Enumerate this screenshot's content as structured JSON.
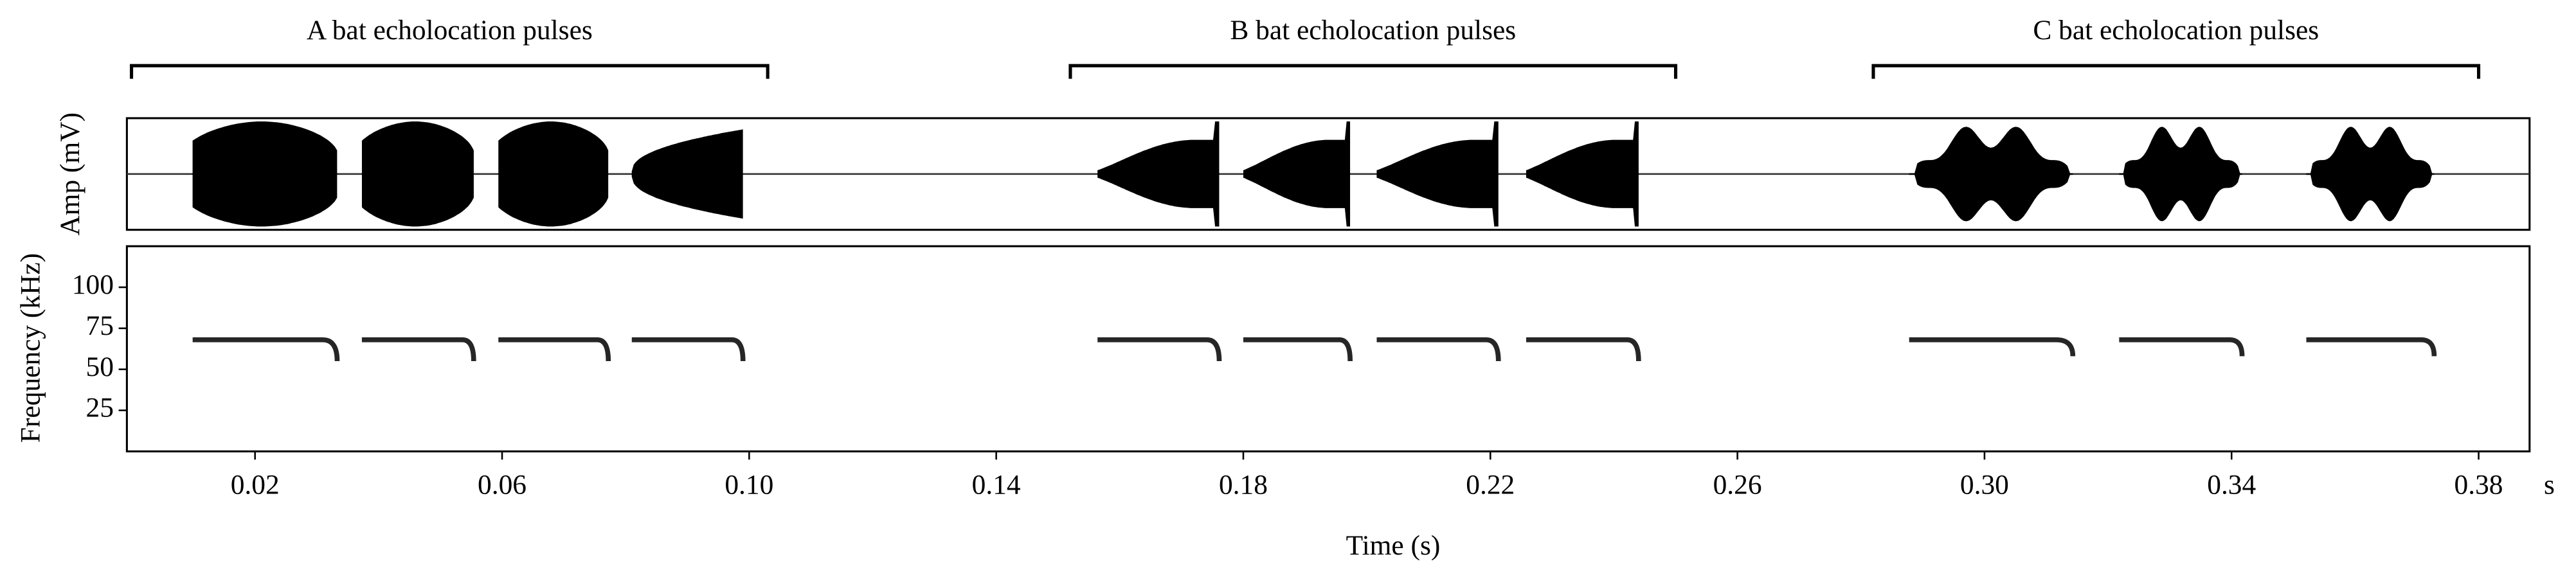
{
  "chart_data": {
    "type": "oscillogram-spectrogram",
    "amp_label": "Amp (mV)",
    "freq_label": "Frequency (kHz)",
    "x_label": "Time (s)",
    "x_unit": "s",
    "color": "#000000",
    "xlim": [
      0,
      0.39
    ],
    "xticks": [
      0.02,
      0.06,
      {
        "value": 0.1,
        "label": "0.10"
      },
      0.14,
      0.18,
      0.22,
      0.26,
      {
        "value": 0.3,
        "label": "0.30"
      },
      0.34,
      0.38
    ],
    "ylim": [
      0,
      125
    ],
    "yticks": [
      25,
      50,
      75,
      100
    ],
    "groups": [
      {
        "label": "A bat echolocation pulses",
        "span": [
          0,
          0.103
        ],
        "pulses": [
          {
            "start": 0.0099,
            "end": 0.0333,
            "freq": 68,
            "end_freq": 55
          },
          {
            "start": 0.0373,
            "end": 0.0554,
            "freq": 68,
            "end_freq": 55
          },
          {
            "start": 0.0594,
            "end": 0.0772,
            "freq": 68,
            "end_freq": 55
          },
          {
            "start": 0.081,
            "end": 0.099,
            "freq": 68,
            "end_freq": 55
          }
        ]
      },
      {
        "label": "B bat echolocation pulses",
        "span": [
          0.152,
          0.25
        ],
        "pulses": [
          {
            "start": 0.1564,
            "end": 0.1761,
            "freq": 68,
            "end_freq": 55
          },
          {
            "start": 0.18,
            "end": 0.1973,
            "freq": 68,
            "end_freq": 55
          },
          {
            "start": 0.2016,
            "end": 0.2213,
            "freq": 68,
            "end_freq": 55
          },
          {
            "start": 0.2258,
            "end": 0.244,
            "freq": 68,
            "end_freq": 55
          }
        ]
      },
      {
        "label": "C bat echolocation pulses",
        "span": [
          0.282,
          0.38
        ],
        "pulses": [
          {
            "start": 0.2878,
            "end": 0.3143,
            "freq": 68,
            "end_freq": 58
          },
          {
            "start": 0.3218,
            "end": 0.3417,
            "freq": 68,
            "end_freq": 58
          },
          {
            "start": 0.3521,
            "end": 0.3728,
            "freq": 68,
            "end_freq": 58
          }
        ]
      }
    ]
  }
}
